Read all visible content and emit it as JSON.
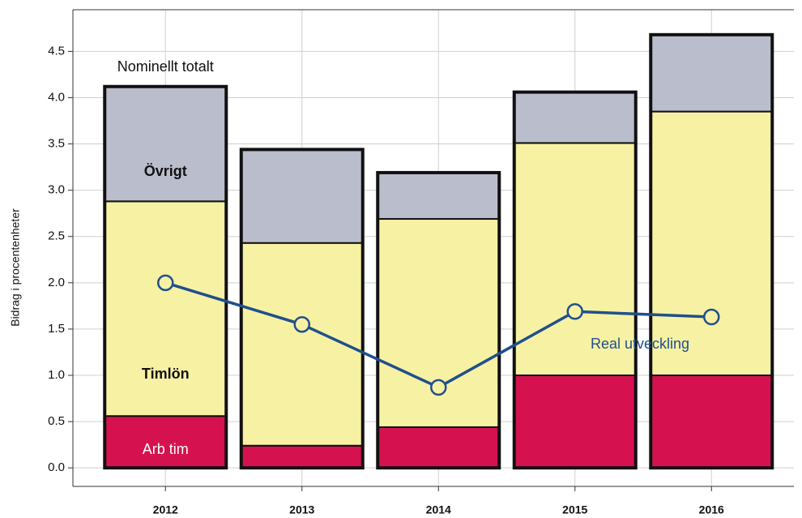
{
  "chart_data": {
    "type": "bar",
    "stacked": true,
    "y_label": "Bidrag i procentenheter",
    "categories": [
      "2012",
      "2013",
      "2014",
      "2015",
      "2016"
    ],
    "series": [
      {
        "name": "Arb tim",
        "color": "#d5124f",
        "values": [
          0.56,
          0.24,
          0.44,
          1.0,
          1.0
        ]
      },
      {
        "name": "Timlön",
        "color": "#f7f1a3",
        "values": [
          2.32,
          2.19,
          2.25,
          2.51,
          2.85
        ]
      },
      {
        "name": "Övrigt",
        "color": "#babdcc",
        "values": [
          1.24,
          1.01,
          0.5,
          0.55,
          0.83
        ]
      },
      {
        "name": "Real utveckling",
        "type": "line",
        "color": "#1f4f8d",
        "values": [
          2.0,
          1.55,
          0.87,
          1.69,
          1.63
        ]
      }
    ],
    "annotations": [
      "Nominellt totalt"
    ],
    "ylim": [
      -0.2,
      4.95
    ],
    "yticks": [
      {
        "value": 0,
        "label": "0.0"
      },
      0.5,
      {
        "value": 1,
        "label": "1.0"
      },
      1.5,
      {
        "value": 2,
        "label": "2.0"
      },
      2.5,
      {
        "value": 3,
        "label": "3.0"
      },
      3.5,
      {
        "value": 4,
        "label": "4.0"
      },
      4.5
    ],
    "grid": true
  }
}
